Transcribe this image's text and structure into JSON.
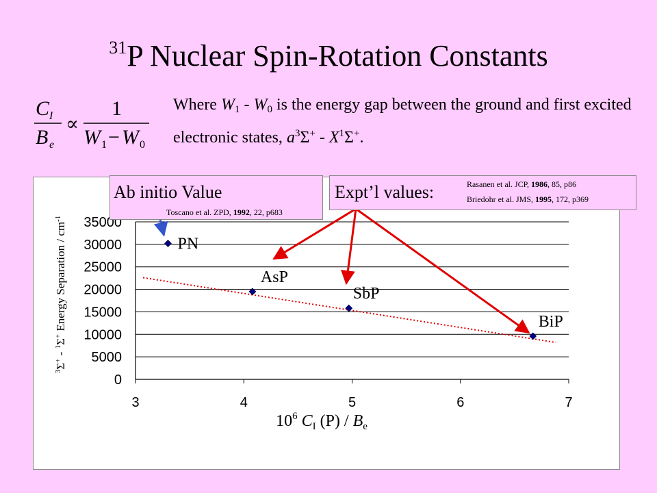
{
  "title": {
    "sup": "31",
    "text": "P Nuclear Spin-Rotation Constants"
  },
  "formula": {
    "numerator_left": "C",
    "numerator_left_sub": "I",
    "denominator_left": "B",
    "denominator_left_sub": "e",
    "proportional": "∝",
    "numerator_right": "1",
    "denominator_right": "W",
    "denominator_right_sub1": "1",
    "minus": "−",
    "denominator_right_w2": "W",
    "denominator_right_sub2": "0"
  },
  "description": {
    "p1": "Where ",
    "w1": "W",
    "w1_sub": "1",
    "p2": " - ",
    "w0": "W",
    "w0_sub": "0",
    "p3": " is the energy gap between the ground and first excited electronic states, ",
    "a": "a",
    "a_sup": "3",
    "sigma1": "Σ",
    "sigma1_sup": "+",
    "p4": " - ",
    "x": "X",
    "x_sup": "1",
    "sigma2": "Σ",
    "sigma2_sup": "+",
    "p5": "."
  },
  "callouts": {
    "abinitio_label": "Ab initio Value",
    "abinitio_ref_pre": "Toscano et al. ZPD, ",
    "abinitio_ref_year": "1992",
    "abinitio_ref_post": ", 22, p683",
    "expt_label": "Expt’l values:",
    "expt_ref1_pre": "Rasanen et al. JCP, ",
    "expt_ref1_year": "1986",
    "expt_ref1_post": ", 85, p86",
    "expt_ref2_pre": "Briedohr et al. JMS, ",
    "expt_ref2_year": "1995",
    "expt_ref2_post": ", 172, p369"
  },
  "chart_data": {
    "type": "scatter",
    "x": [
      3.3,
      4.08,
      4.97,
      6.67
    ],
    "y": [
      30200,
      19500,
      15800,
      9600
    ],
    "point_labels": [
      "PN",
      "AsP",
      "SbP",
      "BiP"
    ],
    "trendline": {
      "style": "dotted",
      "color": "#e00000",
      "x": [
        3.07,
        6.88
      ],
      "y": [
        22600,
        8200
      ]
    },
    "xlim": [
      3,
      7
    ],
    "ylim": [
      0,
      35000
    ],
    "x_ticks": [
      "3",
      "4",
      "5",
      "6",
      "7"
    ],
    "y_ticks": [
      "0",
      "5000",
      "10000",
      "15000",
      "20000",
      "25000",
      "30000",
      "35000"
    ],
    "grid": true,
    "xlabel": {
      "prefix": "10",
      "prefix_sup": "6",
      "c": "C",
      "c_sub": "I",
      "middle": " (P) / ",
      "b": "B",
      "b_sub": "e"
    },
    "ylabel": {
      "sup1": "3",
      "sigma1": "Σ",
      "sup1b": "+",
      "dash": " - ",
      "sup2": "1",
      "sigma2": "Σ",
      "sup2b": "+",
      "rest": " Energy Separation / cm",
      "unit_sup": "-1"
    },
    "marker_color": "#000080",
    "arrow_color_experimental": "#e00000",
    "arrow_color_abinitio": "#3355cc"
  }
}
